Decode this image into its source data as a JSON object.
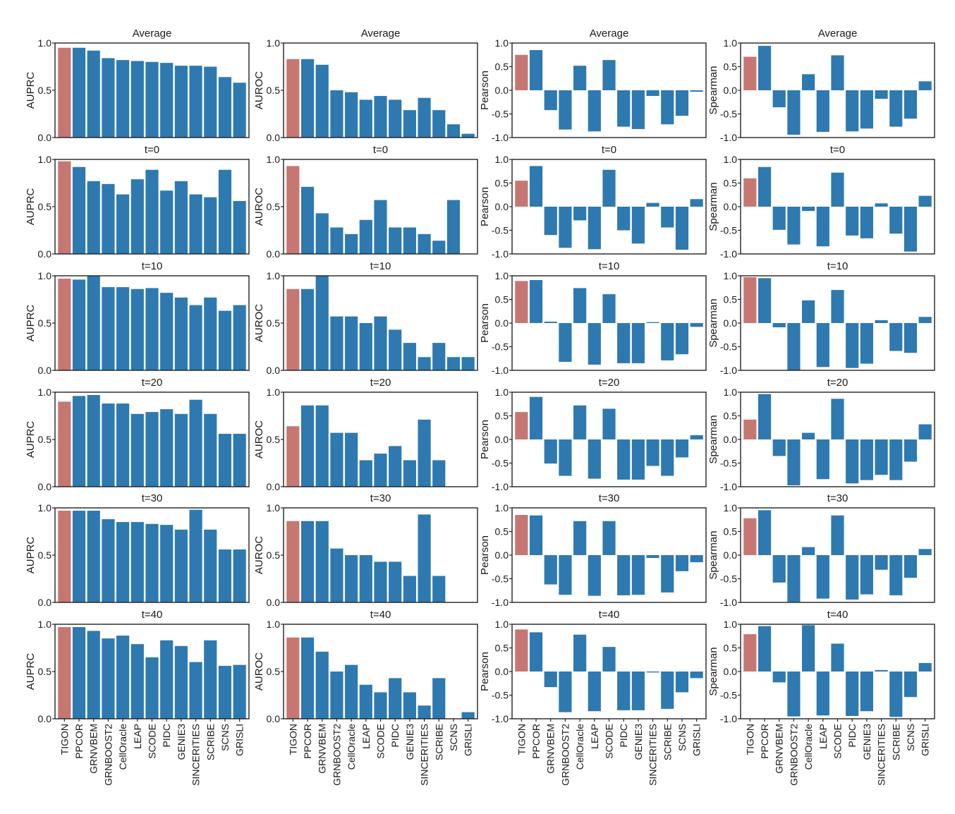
{
  "colors": {
    "highlight": "#c77772",
    "bar": "#2e79b0",
    "axis": "#222222"
  },
  "chart_data": [
    {
      "type": "bar",
      "title": "Average",
      "ylabel": "AUPRC",
      "ylim": [
        0,
        1
      ],
      "yticks": [
        "0.0",
        "0.5",
        "1.0"
      ],
      "categories": [
        "TIGON",
        "PPCOR",
        "GRNVBEM",
        "GRNBOOST2",
        "CellOracle",
        "LEAP",
        "SCODE",
        "PIDC",
        "GENIE3",
        "SINCERITIES",
        "SCRIBE",
        "SCNS",
        "GRISLI"
      ],
      "values": [
        0.95,
        0.95,
        0.92,
        0.84,
        0.82,
        0.81,
        0.8,
        0.79,
        0.76,
        0.76,
        0.75,
        0.64,
        0.58
      ]
    },
    {
      "type": "bar",
      "title": "Average",
      "ylabel": "AUROC",
      "ylim": [
        0,
        1
      ],
      "yticks": [
        "0.0",
        "0.5",
        "1.0"
      ],
      "categories": [
        "TIGON",
        "PPCOR",
        "GRNVBEM",
        "GRNBOOST2",
        "CellOracle",
        "LEAP",
        "SCODE",
        "PIDC",
        "GENIE3",
        "SINCERITIES",
        "SCRIBE",
        "SCNS",
        "GRISLI"
      ],
      "values": [
        0.83,
        0.83,
        0.77,
        0.5,
        0.48,
        0.4,
        0.44,
        0.4,
        0.29,
        0.42,
        0.29,
        0.14,
        0.04
      ]
    },
    {
      "type": "bar",
      "title": "Average",
      "ylabel": "Pearson",
      "ylim": [
        -1,
        1
      ],
      "yticks": [
        "-1.0",
        "-0.5",
        "0.0",
        "0.5",
        "1.0"
      ],
      "categories": [
        "TIGON",
        "PPCOR",
        "GRNVBEM",
        "GRNBOOST2",
        "CellOracle",
        "LEAP",
        "SCODE",
        "PIDC",
        "GENIE3",
        "SINCERITIES",
        "SCRIBE",
        "SCNS",
        "GRISLI"
      ],
      "values": [
        0.75,
        0.85,
        -0.42,
        -0.83,
        0.52,
        -0.87,
        0.64,
        -0.77,
        -0.82,
        -0.12,
        -0.72,
        -0.54,
        -0.03
      ]
    },
    {
      "type": "bar",
      "title": "Average",
      "ylabel": "Spearman",
      "ylim": [
        -1,
        1
      ],
      "yticks": [
        "-1.0",
        "-0.5",
        "0.0",
        "0.5",
        "1.0"
      ],
      "categories": [
        "TIGON",
        "PPCOR",
        "GRNVBEM",
        "GRNBOOST2",
        "CellOracle",
        "LEAP",
        "SCODE",
        "PIDC",
        "GENIE3",
        "SINCERITIES",
        "SCRIBE",
        "SCNS",
        "GRISLI"
      ],
      "values": [
        0.71,
        0.94,
        -0.36,
        -0.94,
        0.34,
        -0.88,
        0.74,
        -0.87,
        -0.81,
        -0.18,
        -0.77,
        -0.6,
        0.19
      ]
    },
    {
      "type": "bar",
      "title": "t=0",
      "ylabel": "AUPRC",
      "ylim": [
        0,
        1
      ],
      "yticks": [
        "0.0",
        "0.5",
        "1.0"
      ],
      "categories": [
        "TIGON",
        "PPCOR",
        "GRNVBEM",
        "GRNBOOST2",
        "CellOracle",
        "LEAP",
        "SCODE",
        "PIDC",
        "GENIE3",
        "SINCERITIES",
        "SCRIBE",
        "SCNS",
        "GRISLI"
      ],
      "values": [
        0.98,
        0.92,
        0.77,
        0.74,
        0.63,
        0.79,
        0.89,
        0.67,
        0.77,
        0.63,
        0.6,
        0.89,
        0.56
      ]
    },
    {
      "type": "bar",
      "title": "t=0",
      "ylabel": "AUROC",
      "ylim": [
        0,
        1
      ],
      "yticks": [
        "0.0",
        "0.5",
        "1.0"
      ],
      "categories": [
        "TIGON",
        "PPCOR",
        "GRNVBEM",
        "GRNBOOST2",
        "CellOracle",
        "LEAP",
        "SCODE",
        "PIDC",
        "GENIE3",
        "SINCERITIES",
        "SCRIBE",
        "SCNS",
        "GRISLI"
      ],
      "values": [
        0.93,
        0.71,
        0.43,
        0.28,
        0.21,
        0.36,
        0.57,
        0.28,
        0.28,
        0.21,
        0.14,
        0.57,
        0.0
      ]
    },
    {
      "type": "bar",
      "title": "t=0",
      "ylabel": "Pearson",
      "ylim": [
        -1,
        1
      ],
      "yticks": [
        "-1.0",
        "-0.5",
        "0.0",
        "0.5",
        "1.0"
      ],
      "categories": [
        "TIGON",
        "PPCOR",
        "GRNVBEM",
        "GRNBOOST2",
        "CellOracle",
        "LEAP",
        "SCODE",
        "PIDC",
        "GENIE3",
        "SINCERITIES",
        "SCRIBE",
        "SCNS",
        "GRISLI"
      ],
      "values": [
        0.55,
        0.86,
        -0.6,
        -0.87,
        -0.29,
        -0.9,
        0.78,
        -0.5,
        -0.78,
        0.08,
        -0.44,
        -0.91,
        0.16
      ]
    },
    {
      "type": "bar",
      "title": "t=0",
      "ylabel": "Spearman",
      "ylim": [
        -1,
        1
      ],
      "yticks": [
        "-1.0",
        "-0.5",
        "0.0",
        "0.5",
        "1.0"
      ],
      "categories": [
        "TIGON",
        "PPCOR",
        "GRNVBEM",
        "GRNBOOST2",
        "CellOracle",
        "LEAP",
        "SCODE",
        "PIDC",
        "GENIE3",
        "SINCERITIES",
        "SCRIBE",
        "SCNS",
        "GRISLI"
      ],
      "values": [
        0.6,
        0.84,
        -0.49,
        -0.8,
        -0.09,
        -0.84,
        0.72,
        -0.61,
        -0.67,
        0.07,
        -0.57,
        -0.95,
        0.23
      ]
    },
    {
      "type": "bar",
      "title": "t=10",
      "ylabel": "AUPRC",
      "ylim": [
        0,
        1
      ],
      "yticks": [
        "0.0",
        "0.5",
        "1.0"
      ],
      "categories": [
        "TIGON",
        "PPCOR",
        "GRNVBEM",
        "GRNBOOST2",
        "CellOracle",
        "LEAP",
        "SCODE",
        "PIDC",
        "GENIE3",
        "SINCERITIES",
        "SCRIBE",
        "SCNS",
        "GRISLI"
      ],
      "values": [
        0.97,
        0.96,
        1.0,
        0.88,
        0.88,
        0.86,
        0.87,
        0.82,
        0.77,
        0.69,
        0.77,
        0.63,
        0.69
      ]
    },
    {
      "type": "bar",
      "title": "t=10",
      "ylabel": "AUROC",
      "ylim": [
        0,
        1
      ],
      "yticks": [
        "0.0",
        "0.5",
        "1.0"
      ],
      "categories": [
        "TIGON",
        "PPCOR",
        "GRNVBEM",
        "GRNBOOST2",
        "CellOracle",
        "LEAP",
        "SCODE",
        "PIDC",
        "GENIE3",
        "SINCERITIES",
        "SCRIBE",
        "SCNS",
        "GRISLI"
      ],
      "values": [
        0.86,
        0.86,
        1.0,
        0.57,
        0.57,
        0.5,
        0.57,
        0.43,
        0.29,
        0.14,
        0.29,
        0.14,
        0.14
      ]
    },
    {
      "type": "bar",
      "title": "t=10",
      "ylabel": "Pearson",
      "ylim": [
        -1,
        1
      ],
      "yticks": [
        "-1.0",
        "-0.5",
        "0.0",
        "0.5",
        "1.0"
      ],
      "categories": [
        "TIGON",
        "PPCOR",
        "GRNVBEM",
        "GRNBOOST2",
        "CellOracle",
        "LEAP",
        "SCODE",
        "PIDC",
        "GENIE3",
        "SINCERITIES",
        "SCRIBE",
        "SCNS",
        "GRISLI"
      ],
      "values": [
        0.89,
        0.91,
        0.03,
        -0.82,
        0.74,
        -0.88,
        0.61,
        -0.85,
        -0.85,
        0.02,
        -0.79,
        -0.66,
        -0.08
      ]
    },
    {
      "type": "bar",
      "title": "t=10",
      "ylabel": "Spearman",
      "ylim": [
        -1,
        1
      ],
      "yticks": [
        "-1.0",
        "-0.5",
        "0.0",
        "0.5",
        "1.0"
      ],
      "categories": [
        "TIGON",
        "PPCOR",
        "GRNVBEM",
        "GRNBOOST2",
        "CellOracle",
        "LEAP",
        "SCODE",
        "PIDC",
        "GENIE3",
        "SINCERITIES",
        "SCRIBE",
        "SCNS",
        "GRISLI"
      ],
      "values": [
        0.97,
        0.95,
        -0.09,
        -1.0,
        0.48,
        -0.93,
        0.7,
        -0.95,
        -0.86,
        0.06,
        -0.59,
        -0.63,
        0.13
      ]
    },
    {
      "type": "bar",
      "title": "t=20",
      "ylabel": "AUPRC",
      "ylim": [
        0,
        1
      ],
      "yticks": [
        "0.0",
        "0.5",
        "1.0"
      ],
      "categories": [
        "TIGON",
        "PPCOR",
        "GRNVBEM",
        "GRNBOOST2",
        "CellOracle",
        "LEAP",
        "SCODE",
        "PIDC",
        "GENIE3",
        "SINCERITIES",
        "SCRIBE",
        "SCNS",
        "GRISLI"
      ],
      "values": [
        0.9,
        0.96,
        0.97,
        0.88,
        0.88,
        0.77,
        0.79,
        0.82,
        0.77,
        0.92,
        0.77,
        0.56,
        0.56
      ]
    },
    {
      "type": "bar",
      "title": "t=20",
      "ylabel": "AUROC",
      "ylim": [
        0,
        1
      ],
      "yticks": [
        "0.0",
        "0.5",
        "1.0"
      ],
      "categories": [
        "TIGON",
        "PPCOR",
        "GRNVBEM",
        "GRNBOOST2",
        "CellOracle",
        "LEAP",
        "SCODE",
        "PIDC",
        "GENIE3",
        "SINCERITIES",
        "SCRIBE",
        "SCNS",
        "GRISLI"
      ],
      "values": [
        0.64,
        0.86,
        0.86,
        0.57,
        0.57,
        0.28,
        0.35,
        0.43,
        0.28,
        0.71,
        0.28,
        0.0,
        0.0
      ]
    },
    {
      "type": "bar",
      "title": "t=20",
      "ylabel": "Pearson",
      "ylim": [
        -1,
        1
      ],
      "yticks": [
        "-1.0",
        "-0.5",
        "0.0",
        "0.5",
        "1.0"
      ],
      "categories": [
        "TIGON",
        "PPCOR",
        "GRNVBEM",
        "GRNBOOST2",
        "CellOracle",
        "LEAP",
        "SCODE",
        "PIDC",
        "GENIE3",
        "SINCERITIES",
        "SCRIBE",
        "SCNS",
        "GRISLI"
      ],
      "values": [
        0.58,
        0.9,
        -0.51,
        -0.77,
        0.72,
        -0.83,
        0.65,
        -0.85,
        -0.85,
        -0.56,
        -0.77,
        -0.38,
        0.09
      ]
    },
    {
      "type": "bar",
      "title": "t=20",
      "ylabel": "Spearman",
      "ylim": [
        -1,
        1
      ],
      "yticks": [
        "-1.0",
        "-0.5",
        "0.0",
        "0.5",
        "1.0"
      ],
      "categories": [
        "TIGON",
        "PPCOR",
        "GRNVBEM",
        "GRNBOOST2",
        "CellOracle",
        "LEAP",
        "SCODE",
        "PIDC",
        "GENIE3",
        "SINCERITIES",
        "SCRIBE",
        "SCNS",
        "GRISLI"
      ],
      "values": [
        0.42,
        0.96,
        -0.35,
        -0.97,
        0.14,
        -0.84,
        0.86,
        -0.93,
        -0.86,
        -0.75,
        -0.86,
        -0.47,
        0.32
      ]
    },
    {
      "type": "bar",
      "title": "t=30",
      "ylabel": "AUPRC",
      "ylim": [
        0,
        1
      ],
      "yticks": [
        "0.0",
        "0.5",
        "1.0"
      ],
      "categories": [
        "TIGON",
        "PPCOR",
        "GRNVBEM",
        "GRNBOOST2",
        "CellOracle",
        "LEAP",
        "SCODE",
        "PIDC",
        "GENIE3",
        "SINCERITIES",
        "SCRIBE",
        "SCNS",
        "GRISLI"
      ],
      "values": [
        0.97,
        0.97,
        0.97,
        0.88,
        0.85,
        0.85,
        0.83,
        0.82,
        0.77,
        0.98,
        0.77,
        0.56,
        0.56
      ]
    },
    {
      "type": "bar",
      "title": "t=30",
      "ylabel": "AUROC",
      "ylim": [
        0,
        1
      ],
      "yticks": [
        "0.0",
        "0.5",
        "1.0"
      ],
      "categories": [
        "TIGON",
        "PPCOR",
        "GRNVBEM",
        "GRNBOOST2",
        "CellOracle",
        "LEAP",
        "SCODE",
        "PIDC",
        "GENIE3",
        "SINCERITIES",
        "SCRIBE",
        "SCNS",
        "GRISLI"
      ],
      "values": [
        0.86,
        0.86,
        0.86,
        0.57,
        0.5,
        0.5,
        0.43,
        0.43,
        0.28,
        0.93,
        0.28,
        0.0,
        0.0
      ]
    },
    {
      "type": "bar",
      "title": "t=30",
      "ylabel": "Pearson",
      "ylim": [
        -1,
        1
      ],
      "yticks": [
        "-1.0",
        "-0.5",
        "0.0",
        "0.5",
        "1.0"
      ],
      "categories": [
        "TIGON",
        "PPCOR",
        "GRNVBEM",
        "GRNBOOST2",
        "CellOracle",
        "LEAP",
        "SCODE",
        "PIDC",
        "GENIE3",
        "SINCERITIES",
        "SCRIBE",
        "SCNS",
        "GRISLI"
      ],
      "values": [
        0.85,
        0.84,
        -0.62,
        -0.84,
        0.72,
        -0.86,
        0.72,
        -0.85,
        -0.84,
        -0.06,
        -0.79,
        -0.34,
        -0.15
      ]
    },
    {
      "type": "bar",
      "title": "t=30",
      "ylabel": "Spearman",
      "ylim": [
        -1,
        1
      ],
      "yticks": [
        "-1.0",
        "-0.5",
        "0.0",
        "0.5",
        "1.0"
      ],
      "categories": [
        "TIGON",
        "PPCOR",
        "GRNVBEM",
        "GRNBOOST2",
        "CellOracle",
        "LEAP",
        "SCODE",
        "PIDC",
        "GENIE3",
        "SINCERITIES",
        "SCRIBE",
        "SCNS",
        "GRISLI"
      ],
      "values": [
        0.78,
        0.95,
        -0.58,
        -0.99,
        0.17,
        -0.92,
        0.84,
        -0.94,
        -0.83,
        -0.31,
        -0.85,
        -0.48,
        0.13
      ]
    },
    {
      "type": "bar",
      "title": "t=40",
      "ylabel": "AUPRC",
      "ylim": [
        0,
        1
      ],
      "yticks": [
        "0.0",
        "0.5",
        "1.0"
      ],
      "categories": [
        "TIGON",
        "PPCOR",
        "GRNVBEM",
        "GRNBOOST2",
        "CellOracle",
        "LEAP",
        "SCODE",
        "PIDC",
        "GENIE3",
        "SINCERITIES",
        "SCRIBE",
        "SCNS",
        "GRISLI"
      ],
      "values": [
        0.97,
        0.97,
        0.93,
        0.85,
        0.88,
        0.79,
        0.65,
        0.83,
        0.77,
        0.6,
        0.83,
        0.56,
        0.57
      ]
    },
    {
      "type": "bar",
      "title": "t=40",
      "ylabel": "AUROC",
      "ylim": [
        0,
        1
      ],
      "yticks": [
        "0.0",
        "0.5",
        "1.0"
      ],
      "categories": [
        "TIGON",
        "PPCOR",
        "GRNVBEM",
        "GRNBOOST2",
        "CellOracle",
        "LEAP",
        "SCODE",
        "PIDC",
        "GENIE3",
        "SINCERITIES",
        "SCRIBE",
        "SCNS",
        "GRISLI"
      ],
      "values": [
        0.86,
        0.86,
        0.71,
        0.5,
        0.57,
        0.36,
        0.28,
        0.43,
        0.28,
        0.14,
        0.43,
        0.0,
        0.07
      ]
    },
    {
      "type": "bar",
      "title": "t=40",
      "ylabel": "Pearson",
      "ylim": [
        -1,
        1
      ],
      "yticks": [
        "-1.0",
        "-0.5",
        "0.0",
        "0.5",
        "1.0"
      ],
      "categories": [
        "TIGON",
        "PPCOR",
        "GRNVBEM",
        "GRNBOOST2",
        "CellOracle",
        "LEAP",
        "SCODE",
        "PIDC",
        "GENIE3",
        "SINCERITIES",
        "SCRIBE",
        "SCNS",
        "GRISLI"
      ],
      "values": [
        0.89,
        0.83,
        -0.33,
        -0.86,
        0.78,
        -0.84,
        0.52,
        -0.82,
        -0.82,
        -0.02,
        -0.79,
        -0.44,
        -0.14
      ]
    },
    {
      "type": "bar",
      "title": "t=40",
      "ylabel": "Spearman",
      "ylim": [
        -1,
        1
      ],
      "yticks": [
        "-1.0",
        "-0.5",
        "0.0",
        "0.5",
        "1.0"
      ],
      "categories": [
        "TIGON",
        "PPCOR",
        "GRNVBEM",
        "GRNBOOST2",
        "CellOracle",
        "LEAP",
        "SCODE",
        "PIDC",
        "GENIE3",
        "SINCERITIES",
        "SCRIBE",
        "SCNS",
        "GRISLI"
      ],
      "values": [
        0.79,
        0.96,
        -0.23,
        -0.95,
        0.98,
        -0.93,
        0.59,
        -0.94,
        -0.84,
        0.03,
        -0.96,
        -0.54,
        0.18
      ]
    }
  ]
}
